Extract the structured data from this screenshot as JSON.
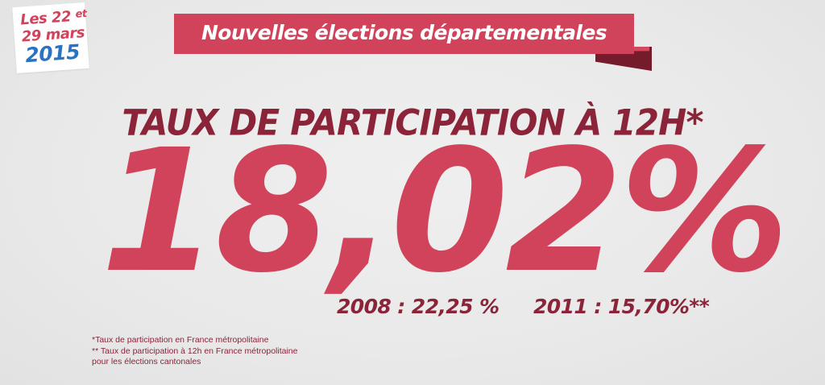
{
  "badge": {
    "line1_main": "Les 22",
    "line1_small": "et",
    "line2": "29 mars",
    "line3": "2015"
  },
  "banner": {
    "text": "Nouvelles élections départementales"
  },
  "title": "TAUX DE PARTICIPATION À 12H*",
  "percentage": "18,02%",
  "comparisons": [
    "2008 : 22,25 %",
    "2011 : 15,70%**"
  ],
  "footnotes": [
    "*Taux de participation en France métropolitaine",
    "** Taux de participation à 12h en France métropolitaine",
    "pour les élections cantonales"
  ],
  "colors": {
    "accent": "#d1435b",
    "dark_accent": "#8b2439",
    "badge_year": "#2b73c2",
    "background": "#ebebeb"
  }
}
